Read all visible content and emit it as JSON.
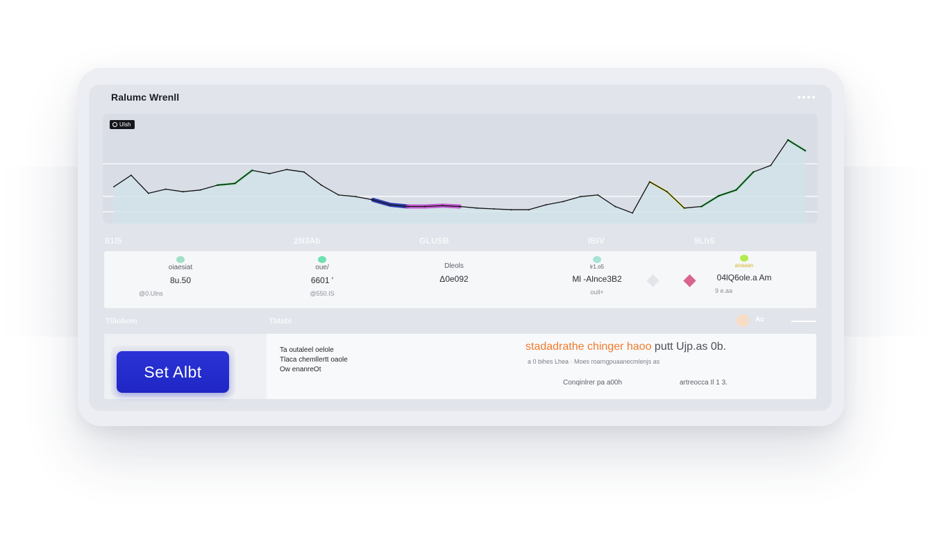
{
  "app": {
    "title": "Ralumc Wrenll",
    "menu_icon": "more-horizontal-icon"
  },
  "chart": {
    "badge_label": "UIsh",
    "badge_icon": "search-icon",
    "colors": {
      "line": "#111111",
      "fill": "#cfe3e8",
      "gridline": "#ffffff",
      "accent_green": "#4fd46a",
      "accent_yellow": "#e5e84a",
      "accent_blue": "#1e2ea8",
      "accent_magenta": "#c24fd0"
    }
  },
  "chart_data": {
    "type": "line",
    "title": "",
    "xlabel": "",
    "ylabel": "",
    "x": [
      0,
      1,
      2,
      3,
      4,
      5,
      6,
      7,
      8,
      9,
      10,
      11,
      12,
      13,
      14,
      15,
      16,
      17,
      18,
      19,
      20,
      21,
      22,
      23,
      24,
      25,
      26,
      27,
      28,
      29,
      30,
      31,
      32,
      33,
      34,
      35,
      36,
      37,
      38,
      39,
      40
    ],
    "values": [
      28,
      42,
      20,
      25,
      22,
      24,
      30,
      32,
      48,
      44,
      49,
      46,
      30,
      18,
      16,
      12,
      6,
      4,
      4,
      5,
      4,
      2,
      1,
      0,
      0,
      6,
      10,
      16,
      18,
      4,
      -4,
      34,
      22,
      2,
      4,
      17,
      24,
      46,
      54,
      85,
      72
    ],
    "ylim": [
      -10,
      100
    ],
    "grid": true
  },
  "stats": {
    "headers": [
      "II1I5",
      "2N3Ab",
      "GLUSB",
      "IBIV",
      "9LhS"
    ],
    "items": [
      {
        "label": "oiaesiat",
        "value": "8u.50",
        "sub": "@0.Ulns",
        "dot_color": "#9fe0c6"
      },
      {
        "label": "oue/",
        "value": "6601 '",
        "sub": "@550.IS",
        "dot_color": "#6fe0b0"
      },
      {
        "label": "Dleols",
        "value": "Δ0e092",
        "sub": "",
        "dot_color": ""
      },
      {
        "label": "lr1.o5",
        "value": "Ml -Alnce3B2",
        "sub": "oull+",
        "dot_color": "#a6e3d4"
      },
      {
        "label": "anaaan",
        "value": "04lQ6ole.a Am",
        "sub": "9 e.aa",
        "dot_color": "#b2ec4c"
      }
    ],
    "diamond_colors": [
      "#e3e5ea",
      "#d9658e"
    ]
  },
  "section": {
    "left_header": "Tlllobom",
    "mid_header": "Tbtabl",
    "right_header": "Ac"
  },
  "action": {
    "button_label": "Set Albt",
    "desc_lines": [
      "Ta outaleel oelole",
      "Tlaca chemllertt oaole",
      "Ow enanreOt"
    ]
  },
  "promo": {
    "headline_accent": "stadadrathe chinger haoo",
    "headline_rest": "putt Ujp.as 0b.",
    "subline": "a 0 bihes Lhea · Moes roarngpuaanecmlenjs as",
    "footer_left": "Conqinlrer pa a00h",
    "footer_right": "artreocca Il 1 3."
  }
}
